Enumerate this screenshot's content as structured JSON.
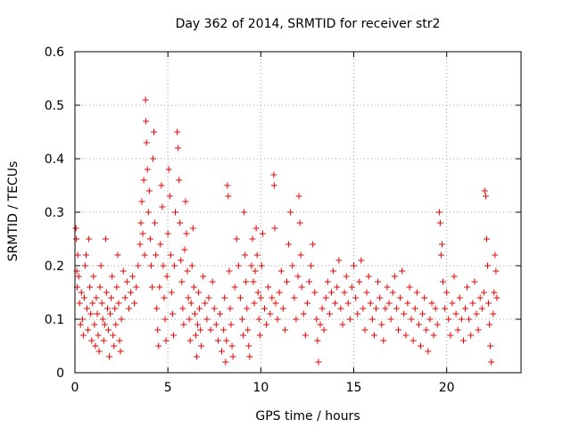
{
  "chart_data": {
    "type": "scatter",
    "title": "Day 362 of 2014, SRMTID for receiver str2",
    "xlabel": "GPS time / hours",
    "ylabel": "SRMTID / TECUs",
    "xlim": [
      0,
      24
    ],
    "ylim": [
      0,
      0.6
    ],
    "x_ticks": [
      0,
      5,
      10,
      15,
      20
    ],
    "x_tick_labels": [
      "0",
      "5",
      "10",
      "15",
      "20"
    ],
    "y_ticks": [
      0,
      0.1,
      0.2,
      0.3,
      0.4,
      0.5,
      0.6
    ],
    "y_tick_labels": [
      "0",
      "0.1",
      "0.2",
      "0.3",
      "0.4",
      "0.5",
      "0.6"
    ],
    "grid": true,
    "marker": "plus",
    "series_color": "#ee0000",
    "series": [
      {
        "name": "SRMTID",
        "points": [
          [
            0.05,
            0.27
          ],
          [
            0.08,
            0.25
          ],
          [
            0.1,
            0.19
          ],
          [
            0.12,
            0.16
          ],
          [
            0.15,
            0.22
          ],
          [
            0.2,
            0.18
          ],
          [
            0.25,
            0.13
          ],
          [
            0.3,
            0.09
          ],
          [
            0.35,
            0.15
          ],
          [
            0.4,
            0.1
          ],
          [
            0.45,
            0.07
          ],
          [
            0.5,
            0.14
          ],
          [
            0.55,
            0.2
          ],
          [
            0.6,
            0.22
          ],
          [
            0.65,
            0.12
          ],
          [
            0.7,
            0.08
          ],
          [
            0.75,
            0.25
          ],
          [
            0.8,
            0.16
          ],
          [
            0.85,
            0.11
          ],
          [
            0.9,
            0.06
          ],
          [
            0.95,
            0.13
          ],
          [
            1.0,
            0.18
          ],
          [
            1.05,
            0.09
          ],
          [
            1.1,
            0.05
          ],
          [
            1.15,
            0.14
          ],
          [
            1.2,
            0.11
          ],
          [
            1.25,
            0.07
          ],
          [
            1.3,
            0.04
          ],
          [
            1.35,
            0.16
          ],
          [
            1.4,
            0.2
          ],
          [
            1.45,
            0.13
          ],
          [
            1.5,
            0.1
          ],
          [
            1.55,
            0.06
          ],
          [
            1.6,
            0.09
          ],
          [
            1.65,
            0.25
          ],
          [
            1.7,
            0.15
          ],
          [
            1.75,
            0.12
          ],
          [
            1.8,
            0.08
          ],
          [
            1.85,
            0.03
          ],
          [
            1.9,
            0.11
          ],
          [
            1.95,
            0.14
          ],
          [
            2.0,
            0.18
          ],
          [
            2.05,
            0.07
          ],
          [
            2.1,
            0.05
          ],
          [
            2.15,
            0.12
          ],
          [
            2.2,
            0.09
          ],
          [
            2.25,
            0.16
          ],
          [
            2.3,
            0.22
          ],
          [
            2.35,
            0.13
          ],
          [
            2.4,
            0.06
          ],
          [
            2.45,
            0.04
          ],
          [
            2.5,
            0.1
          ],
          [
            2.6,
            0.19
          ],
          [
            2.7,
            0.14
          ],
          [
            2.8,
            0.17
          ],
          [
            2.9,
            0.12
          ],
          [
            3.0,
            0.15
          ],
          [
            3.1,
            0.18
          ],
          [
            3.2,
            0.13
          ],
          [
            3.3,
            0.16
          ],
          [
            3.4,
            0.2
          ],
          [
            3.5,
            0.24
          ],
          [
            3.55,
            0.28
          ],
          [
            3.6,
            0.32
          ],
          [
            3.65,
            0.26
          ],
          [
            3.7,
            0.36
          ],
          [
            3.75,
            0.22
          ],
          [
            3.8,
            0.51
          ],
          [
            3.82,
            0.47
          ],
          [
            3.85,
            0.43
          ],
          [
            3.9,
            0.38
          ],
          [
            3.95,
            0.3
          ],
          [
            4.0,
            0.34
          ],
          [
            4.05,
            0.25
          ],
          [
            4.1,
            0.2
          ],
          [
            4.15,
            0.16
          ],
          [
            4.2,
            0.4
          ],
          [
            4.25,
            0.45
          ],
          [
            4.3,
            0.28
          ],
          [
            4.35,
            0.22
          ],
          [
            4.4,
            0.12
          ],
          [
            4.45,
            0.08
          ],
          [
            4.5,
            0.05
          ],
          [
            4.55,
            0.16
          ],
          [
            4.6,
            0.24
          ],
          [
            4.65,
            0.35
          ],
          [
            4.7,
            0.31
          ],
          [
            4.75,
            0.2
          ],
          [
            4.8,
            0.14
          ],
          [
            4.85,
            0.1
          ],
          [
            4.9,
            0.06
          ],
          [
            4.95,
            0.18
          ],
          [
            5.0,
            0.26
          ],
          [
            5.05,
            0.38
          ],
          [
            5.1,
            0.33
          ],
          [
            5.15,
            0.22
          ],
          [
            5.2,
            0.15
          ],
          [
            5.25,
            0.11
          ],
          [
            5.3,
            0.07
          ],
          [
            5.35,
            0.2
          ],
          [
            5.4,
            0.3
          ],
          [
            5.5,
            0.45
          ],
          [
            5.55,
            0.42
          ],
          [
            5.6,
            0.36
          ],
          [
            5.65,
            0.28
          ],
          [
            5.7,
            0.21
          ],
          [
            5.75,
            0.17
          ],
          [
            5.8,
            0.12
          ],
          [
            5.85,
            0.09
          ],
          [
            5.9,
            0.23
          ],
          [
            5.95,
            0.32
          ],
          [
            6.0,
            0.26
          ],
          [
            6.05,
            0.19
          ],
          [
            6.1,
            0.14
          ],
          [
            6.15,
            0.1
          ],
          [
            6.2,
            0.06
          ],
          [
            6.25,
            0.13
          ],
          [
            6.3,
            0.2
          ],
          [
            6.35,
            0.27
          ],
          [
            6.4,
            0.16
          ],
          [
            6.45,
            0.11
          ],
          [
            6.5,
            0.07
          ],
          [
            6.55,
            0.03
          ],
          [
            6.6,
            0.09
          ],
          [
            6.65,
            0.15
          ],
          [
            6.7,
            0.12
          ],
          [
            6.75,
            0.08
          ],
          [
            6.8,
            0.05
          ],
          [
            6.9,
            0.18
          ],
          [
            7.0,
            0.13
          ],
          [
            7.1,
            0.1
          ],
          [
            7.2,
            0.14
          ],
          [
            7.3,
            0.08
          ],
          [
            7.4,
            0.17
          ],
          [
            7.5,
            0.12
          ],
          [
            7.6,
            0.09
          ],
          [
            7.7,
            0.06
          ],
          [
            7.8,
            0.11
          ],
          [
            7.9,
            0.04
          ],
          [
            8.0,
            0.08
          ],
          [
            8.05,
            0.14
          ],
          [
            8.1,
            0.02
          ],
          [
            8.15,
            0.06
          ],
          [
            8.2,
            0.35
          ],
          [
            8.25,
            0.33
          ],
          [
            8.3,
            0.19
          ],
          [
            8.35,
            0.12
          ],
          [
            8.4,
            0.09
          ],
          [
            8.45,
            0.05
          ],
          [
            8.5,
            0.03
          ],
          [
            8.6,
            0.16
          ],
          [
            8.7,
            0.25
          ],
          [
            8.8,
            0.2
          ],
          [
            8.9,
            0.14
          ],
          [
            9.0,
            0.1
          ],
          [
            9.05,
            0.07
          ],
          [
            9.1,
            0.3
          ],
          [
            9.15,
            0.22
          ],
          [
            9.2,
            0.17
          ],
          [
            9.25,
            0.12
          ],
          [
            9.3,
            0.08
          ],
          [
            9.35,
            0.05
          ],
          [
            9.4,
            0.03
          ],
          [
            9.5,
            0.2
          ],
          [
            9.55,
            0.25
          ],
          [
            9.6,
            0.17
          ],
          [
            9.65,
            0.13
          ],
          [
            9.7,
            0.19
          ],
          [
            9.75,
            0.27
          ],
          [
            9.8,
            0.22
          ],
          [
            9.85,
            0.15
          ],
          [
            9.9,
            0.1
          ],
          [
            9.95,
            0.07
          ],
          [
            10.0,
            0.14
          ],
          [
            10.05,
            0.2
          ],
          [
            10.1,
            0.26
          ],
          [
            10.2,
            0.12
          ],
          [
            10.3,
            0.09
          ],
          [
            10.4,
            0.16
          ],
          [
            10.5,
            0.11
          ],
          [
            10.6,
            0.14
          ],
          [
            10.7,
            0.37
          ],
          [
            10.72,
            0.35
          ],
          [
            10.75,
            0.27
          ],
          [
            10.8,
            0.13
          ],
          [
            10.9,
            0.1
          ],
          [
            11.0,
            0.15
          ],
          [
            11.1,
            0.19
          ],
          [
            11.2,
            0.12
          ],
          [
            11.3,
            0.08
          ],
          [
            11.4,
            0.17
          ],
          [
            11.5,
            0.24
          ],
          [
            11.6,
            0.3
          ],
          [
            11.7,
            0.2
          ],
          [
            11.8,
            0.14
          ],
          [
            11.9,
            0.1
          ],
          [
            12.0,
            0.18
          ],
          [
            12.05,
            0.33
          ],
          [
            12.1,
            0.28
          ],
          [
            12.15,
            0.22
          ],
          [
            12.2,
            0.16
          ],
          [
            12.3,
            0.11
          ],
          [
            12.4,
            0.07
          ],
          [
            12.5,
            0.13
          ],
          [
            12.6,
            0.17
          ],
          [
            12.7,
            0.2
          ],
          [
            12.8,
            0.24
          ],
          [
            12.9,
            0.15
          ],
          [
            13.0,
            0.1
          ],
          [
            13.05,
            0.06
          ],
          [
            13.1,
            0.02
          ],
          [
            13.2,
            0.09
          ],
          [
            13.3,
            0.12
          ],
          [
            13.4,
            0.08
          ],
          [
            13.5,
            0.14
          ],
          [
            13.6,
            0.17
          ],
          [
            13.7,
            0.11
          ],
          [
            13.8,
            0.15
          ],
          [
            13.9,
            0.19
          ],
          [
            14.0,
            0.13
          ],
          [
            14.1,
            0.16
          ],
          [
            14.2,
            0.21
          ],
          [
            14.3,
            0.12
          ],
          [
            14.4,
            0.09
          ],
          [
            14.5,
            0.15
          ],
          [
            14.6,
            0.18
          ],
          [
            14.7,
            0.13
          ],
          [
            14.8,
            0.1
          ],
          [
            14.9,
            0.16
          ],
          [
            15.0,
            0.2
          ],
          [
            15.1,
            0.14
          ],
          [
            15.2,
            0.11
          ],
          [
            15.3,
            0.17
          ],
          [
            15.4,
            0.21
          ],
          [
            15.5,
            0.12
          ],
          [
            15.6,
            0.08
          ],
          [
            15.7,
            0.15
          ],
          [
            15.8,
            0.18
          ],
          [
            15.9,
            0.13
          ],
          [
            16.0,
            0.1
          ],
          [
            16.1,
            0.07
          ],
          [
            16.2,
            0.12
          ],
          [
            16.3,
            0.17
          ],
          [
            16.4,
            0.14
          ],
          [
            16.5,
            0.09
          ],
          [
            16.6,
            0.06
          ],
          [
            16.7,
            0.12
          ],
          [
            16.8,
            0.16
          ],
          [
            16.9,
            0.13
          ],
          [
            17.0,
            0.1
          ],
          [
            17.1,
            0.15
          ],
          [
            17.2,
            0.18
          ],
          [
            17.3,
            0.12
          ],
          [
            17.4,
            0.08
          ],
          [
            17.5,
            0.14
          ],
          [
            17.6,
            0.19
          ],
          [
            17.7,
            0.11
          ],
          [
            17.8,
            0.07
          ],
          [
            17.9,
            0.13
          ],
          [
            18.0,
            0.16
          ],
          [
            18.1,
            0.1
          ],
          [
            18.2,
            0.06
          ],
          [
            18.3,
            0.12
          ],
          [
            18.4,
            0.15
          ],
          [
            18.5,
            0.09
          ],
          [
            18.6,
            0.05
          ],
          [
            18.7,
            0.11
          ],
          [
            18.8,
            0.14
          ],
          [
            18.9,
            0.08
          ],
          [
            19.0,
            0.04
          ],
          [
            19.1,
            0.1
          ],
          [
            19.2,
            0.13
          ],
          [
            19.3,
            0.07
          ],
          [
            19.4,
            0.12
          ],
          [
            19.5,
            0.09
          ],
          [
            19.6,
            0.3
          ],
          [
            19.65,
            0.28
          ],
          [
            19.7,
            0.22
          ],
          [
            19.75,
            0.24
          ],
          [
            19.8,
            0.17
          ],
          [
            19.9,
            0.12
          ],
          [
            20.0,
            0.15
          ],
          [
            20.1,
            0.1
          ],
          [
            20.2,
            0.07
          ],
          [
            20.3,
            0.13
          ],
          [
            20.4,
            0.18
          ],
          [
            20.5,
            0.11
          ],
          [
            20.6,
            0.08
          ],
          [
            20.7,
            0.14
          ],
          [
            20.8,
            0.1
          ],
          [
            20.9,
            0.06
          ],
          [
            21.0,
            0.12
          ],
          [
            21.1,
            0.16
          ],
          [
            21.2,
            0.1
          ],
          [
            21.3,
            0.07
          ],
          [
            21.4,
            0.13
          ],
          [
            21.5,
            0.17
          ],
          [
            21.6,
            0.11
          ],
          [
            21.7,
            0.08
          ],
          [
            21.8,
            0.14
          ],
          [
            21.9,
            0.12
          ],
          [
            22.0,
            0.15
          ],
          [
            22.05,
            0.34
          ],
          [
            22.1,
            0.33
          ],
          [
            22.15,
            0.25
          ],
          [
            22.2,
            0.2
          ],
          [
            22.25,
            0.13
          ],
          [
            22.3,
            0.09
          ],
          [
            22.35,
            0.05
          ],
          [
            22.4,
            0.02
          ],
          [
            22.5,
            0.11
          ],
          [
            22.55,
            0.15
          ],
          [
            22.6,
            0.22
          ],
          [
            22.65,
            0.19
          ],
          [
            22.7,
            0.14
          ]
        ]
      }
    ]
  }
}
